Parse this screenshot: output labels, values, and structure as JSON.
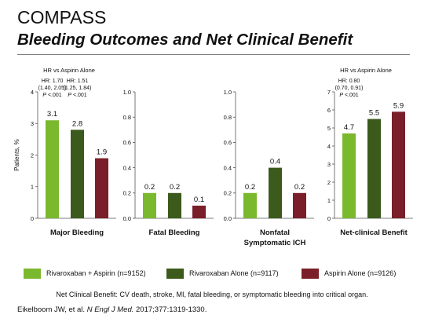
{
  "header": {
    "title": "COMPASS",
    "subtitle": "Bleeding Outcomes and Net Clinical Benefit"
  },
  "colors": {
    "rivaroxaban_aspirin": "#7ab82e",
    "rivaroxaban_alone": "#3b5a1c",
    "aspirin_alone": "#7a1f29"
  },
  "legend": [
    {
      "label": "Rivaroxaban + Aspirin (n=9152)",
      "color": "#7ab82e"
    },
    {
      "label": "Rivaroxaban Alone (n=9117)",
      "color": "#3b5a1c"
    },
    {
      "label": "Aspirin Alone (n=9126)",
      "color": "#7a1f29"
    }
  ],
  "chart_data": [
    {
      "type": "bar",
      "title": "Major Bleeding",
      "ylabel": "Patients, %",
      "ylim": [
        0,
        4
      ],
      "ticks": [
        "0",
        "1",
        "2",
        "3",
        "4"
      ],
      "series": [
        {
          "name": "Rivaroxaban + Aspirin (n=9152)",
          "values": [
            3.1
          ]
        },
        {
          "name": "Rivaroxaban Alone (n=9117)",
          "values": [
            2.8
          ]
        },
        {
          "name": "Aspirin Alone (n=9126)",
          "values": [
            1.9
          ]
        }
      ],
      "data_labels": [
        "3.1",
        "2.8",
        "1.9"
      ],
      "header_note": "HR vs Aspirin Alone",
      "annotations": [
        {
          "bar": 0,
          "lines": [
            "HR: 1.70",
            "(1.40, 2.05)",
            "P <.001"
          ]
        },
        {
          "bar": 1,
          "lines": [
            "HR: 1.51",
            "(1.25, 1.84)",
            "P <.001"
          ]
        }
      ]
    },
    {
      "type": "bar",
      "title": "Fatal Bleeding",
      "ylim": [
        0,
        1
      ],
      "ticks": [
        "0.0",
        "0.2",
        "0.4",
        "0.6",
        "0.8",
        "1.0"
      ],
      "series": [
        {
          "name": "Rivaroxaban + Aspirin (n=9152)",
          "values": [
            0.2
          ]
        },
        {
          "name": "Rivaroxaban Alone (n=9117)",
          "values": [
            0.2
          ]
        },
        {
          "name": "Aspirin Alone (n=9126)",
          "values": [
            0.1
          ]
        }
      ],
      "data_labels": [
        "0.2",
        "0.2",
        "0.1"
      ]
    },
    {
      "type": "bar",
      "title": "Nonfatal Symptomatic ICH",
      "ylim": [
        0,
        1
      ],
      "ticks": [
        "0.0",
        "0.2",
        "0.4",
        "0.6",
        "0.8",
        "1.0"
      ],
      "series": [
        {
          "name": "Rivaroxaban + Aspirin (n=9152)",
          "values": [
            0.2
          ]
        },
        {
          "name": "Rivaroxaban Alone (n=9117)",
          "values": [
            0.4
          ]
        },
        {
          "name": "Aspirin Alone (n=9126)",
          "values": [
            0.2
          ]
        }
      ],
      "data_labels": [
        "0.2",
        "0.4",
        "0.2"
      ]
    },
    {
      "type": "bar",
      "title": "Net-clinical Benefit",
      "ylim": [
        0,
        7
      ],
      "ticks": [
        "0",
        "1",
        "2",
        "3",
        "4",
        "5",
        "6",
        "7"
      ],
      "series": [
        {
          "name": "Rivaroxaban + Aspirin (n=9152)",
          "values": [
            4.7
          ]
        },
        {
          "name": "Rivaroxaban Alone (n=9117)",
          "values": [
            5.5
          ]
        },
        {
          "name": "Aspirin Alone (n=9126)",
          "values": [
            5.9
          ]
        }
      ],
      "data_labels": [
        "4.7",
        "5.5",
        "5.9"
      ],
      "header_note": "HR vs Aspirin Alone",
      "annotations": [
        {
          "bar": 0,
          "lines": [
            "HR: 0.80",
            "(0.70, 0.91)",
            "P <.001"
          ]
        }
      ]
    }
  ],
  "footnote": "Net Clinical Benefit: CV death, stroke, MI, fatal bleeding, or symptomatic bleeding into critical organ.",
  "citation": {
    "authors": "Eikelboom JW, et al.",
    "journal": "N Engl J Med.",
    "details": "2017;377:1319-1330."
  }
}
